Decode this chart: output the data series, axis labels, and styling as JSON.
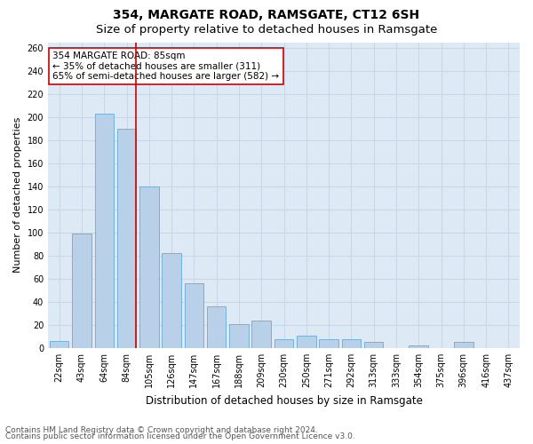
{
  "title": "354, MARGATE ROAD, RAMSGATE, CT12 6SH",
  "subtitle": "Size of property relative to detached houses in Ramsgate",
  "xlabel": "Distribution of detached houses by size in Ramsgate",
  "ylabel": "Number of detached properties",
  "categories": [
    "22sqm",
    "43sqm",
    "64sqm",
    "84sqm",
    "105sqm",
    "126sqm",
    "147sqm",
    "167sqm",
    "188sqm",
    "209sqm",
    "230sqm",
    "250sqm",
    "271sqm",
    "292sqm",
    "313sqm",
    "333sqm",
    "354sqm",
    "375sqm",
    "396sqm",
    "416sqm",
    "437sqm"
  ],
  "values": [
    6,
    99,
    203,
    190,
    140,
    82,
    56,
    36,
    21,
    24,
    8,
    11,
    8,
    8,
    5,
    0,
    2,
    0,
    5,
    0,
    0
  ],
  "bar_color": "#b8d0e8",
  "bar_edge_color": "#6aaad4",
  "grid_color": "#c8d8e8",
  "background_color": "#ddeaf5",
  "vline_color": "#cc0000",
  "annotation_text": "354 MARGATE ROAD: 85sqm\n← 35% of detached houses are smaller (311)\n65% of semi-detached houses are larger (582) →",
  "annotation_box_color": "#ffffff",
  "annotation_box_edge": "#cc0000",
  "ylim": [
    0,
    265
  ],
  "yticks": [
    0,
    20,
    40,
    60,
    80,
    100,
    120,
    140,
    160,
    180,
    200,
    220,
    240,
    260
  ],
  "footer1": "Contains HM Land Registry data © Crown copyright and database right 2024.",
  "footer2": "Contains public sector information licensed under the Open Government Licence v3.0.",
  "title_fontsize": 10,
  "subtitle_fontsize": 9.5,
  "xlabel_fontsize": 8.5,
  "ylabel_fontsize": 8,
  "tick_fontsize": 7,
  "footer_fontsize": 6.5
}
